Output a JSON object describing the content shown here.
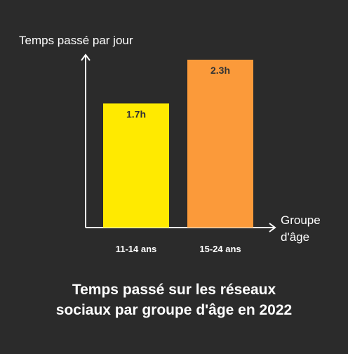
{
  "chart_data": {
    "type": "bar",
    "title_lines": [
      "Temps passé sur les réseaux",
      "sociaux par groupe d'âge en 2022"
    ],
    "ylabel": "Temps passé par jour",
    "xlabel_lines": [
      "Groupe",
      "d'âge"
    ],
    "categories": [
      "11-14 ans",
      "15-24 ans"
    ],
    "values": [
      1.7,
      2.3
    ],
    "data_labels": [
      "1.7h",
      "2.3h"
    ],
    "colors": [
      "#ffea00",
      "#fb9a3a"
    ],
    "ylim": [
      0,
      2.7
    ],
    "grid": false,
    "legend": "none"
  },
  "colors": {
    "background": "#2b2b2b",
    "axis": "#ffffff",
    "label_text": "#333333",
    "tick_text": "#ffffff"
  }
}
